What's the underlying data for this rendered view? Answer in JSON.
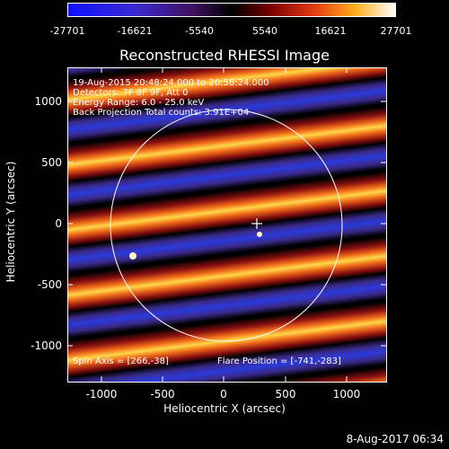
{
  "colorbar": {
    "ticks": [
      "-27701",
      "-16621",
      "-5540",
      "5540",
      "16621",
      "27701"
    ]
  },
  "title": "Reconstructed RHESSI Image",
  "info": {
    "line1": "19-Aug-2015 20:48:24.000 to 20:58:24.000",
    "line2": "Detectors: 7F 8F 9F, Att 0",
    "line3": "Energy Range: 6.0 - 25.0 keV",
    "line4": "Back Projection   Total counts: 3.91E+04",
    "spin_axis": "Spin Axis = [266,-38]",
    "flare_position": "Flare Position = [-741,-283]"
  },
  "axes": {
    "ylabel": "Heliocentric Y (arcsec)",
    "xlabel": "Heliocentric X (arcsec)",
    "yticks": [
      "1000",
      "500",
      "0",
      "-500",
      "-1000"
    ],
    "xticks": [
      "-1000",
      "-500",
      "0",
      "500",
      "1000"
    ]
  },
  "timestamp": "8-Aug-2017 06:34",
  "colors": {
    "background": "#000000",
    "fringe_bright": "#ffd84a",
    "fringe_mid": "#e84a1a",
    "fringe_dark": "#3a2a8a",
    "limb": "#ffffff"
  }
}
